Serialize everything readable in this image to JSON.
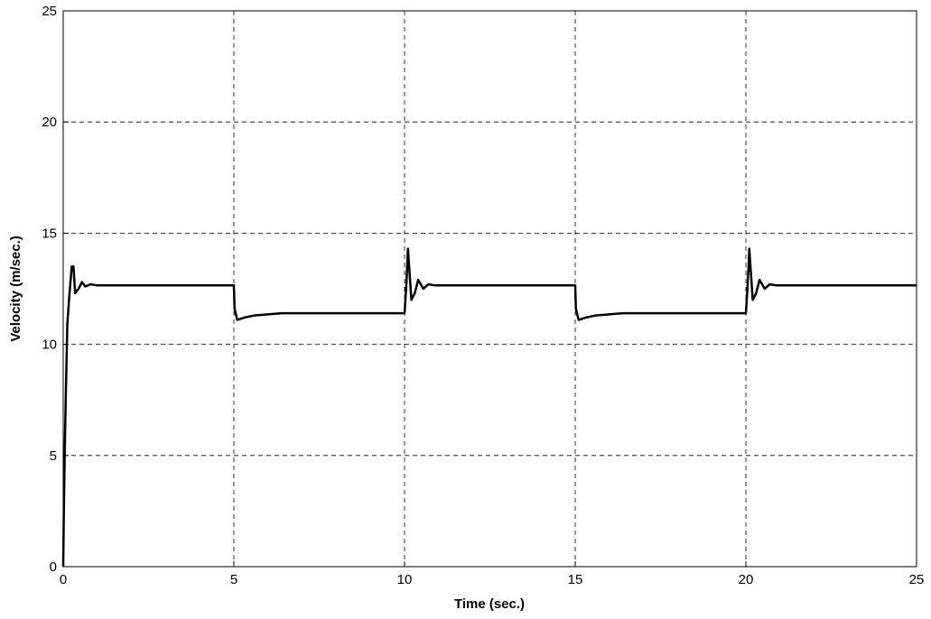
{
  "chart_data": {
    "type": "line",
    "xlabel": "Time (sec.)",
    "ylabel": "Velocity (m/sec.)",
    "x": [
      0,
      0.02,
      0.05,
      0.08,
      0.12,
      0.18,
      0.25,
      0.3,
      0.35,
      0.45,
      0.55,
      0.65,
      0.8,
      1.0,
      5.0,
      5.02,
      5.1,
      5.3,
      5.6,
      6.0,
      6.4,
      10.0,
      10.05,
      10.1,
      10.2,
      10.3,
      10.4,
      10.55,
      10.7,
      10.9,
      15.0,
      15.02,
      15.1,
      15.3,
      15.6,
      16.0,
      16.4,
      20.0,
      20.05,
      20.1,
      20.2,
      20.3,
      20.4,
      20.55,
      20.7,
      20.9,
      25
    ],
    "values": [
      0,
      2.7,
      5.6,
      8,
      10.9,
      12.2,
      13.5,
      13.5,
      12.3,
      12.5,
      12.8,
      12.6,
      12.7,
      12.65,
      12.65,
      11.6,
      11.1,
      11.2,
      11.3,
      11.35,
      11.4,
      11.4,
      12.6,
      14.3,
      12.0,
      12.3,
      12.9,
      12.5,
      12.7,
      12.65,
      12.65,
      11.6,
      11.1,
      11.2,
      11.3,
      11.35,
      11.4,
      11.4,
      12.6,
      14.3,
      12.0,
      12.3,
      12.9,
      12.5,
      12.7,
      12.65,
      12.65
    ],
    "color": "#000000",
    "xlim": [
      0,
      25
    ],
    "xticks": [
      0,
      5,
      10,
      15,
      20,
      25
    ],
    "ylim": [
      0,
      25
    ],
    "yticks": [
      0,
      5,
      10,
      15,
      20,
      25
    ],
    "grid": true
  }
}
